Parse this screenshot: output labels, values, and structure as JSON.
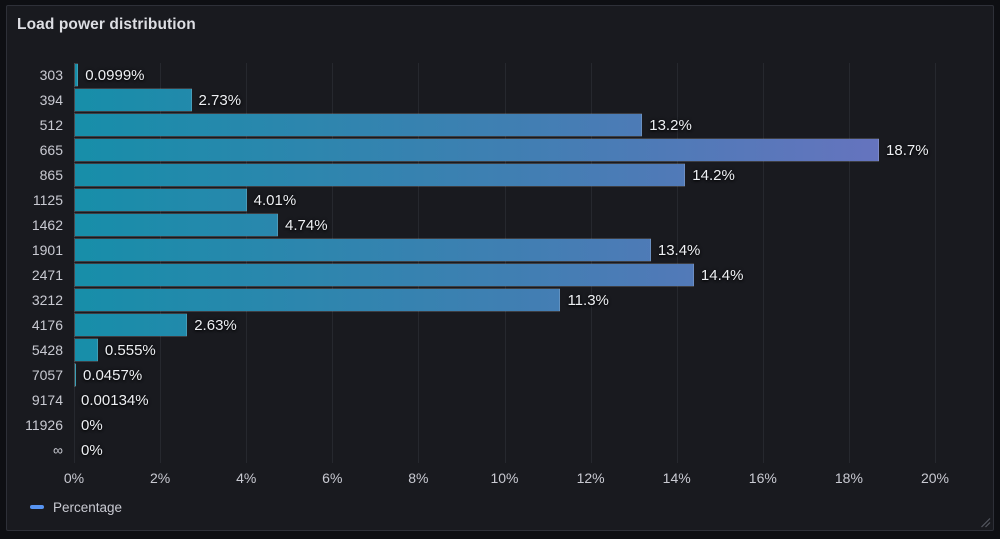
{
  "panel": {
    "title": "Load power distribution"
  },
  "legend": {
    "label": "Percentage",
    "marker_color": "#5794F2"
  },
  "colors": {
    "page_bg": "#0e0f13",
    "panel_bg": "#191a1f",
    "panel_border": "#2e3038",
    "grid_line": "#26282e",
    "axis_text": "#c9cad2",
    "value_text": "#eef0f4",
    "title_text": "#dddee3",
    "legend_marker": "#5794F2",
    "bar_gradient_start": "#178ea9",
    "bar_gradient_mid": "#3f7fb2",
    "bar_gradient_end": "#6b72c0"
  },
  "chart_data": {
    "type": "bar",
    "orientation": "horizontal",
    "title": "Load power distribution",
    "categories": [
      "303",
      "394",
      "512",
      "665",
      "865",
      "1125",
      "1462",
      "1901",
      "2471",
      "3212",
      "4176",
      "5428",
      "7057",
      "9174",
      "11926",
      "∞"
    ],
    "values": [
      0.0999,
      2.73,
      13.2,
      18.7,
      14.2,
      4.01,
      4.74,
      13.4,
      14.4,
      11.3,
      2.63,
      0.555,
      0.0457,
      0.00134,
      0,
      0
    ],
    "value_labels": [
      "0.0999%",
      "2.73%",
      "13.2%",
      "18.7%",
      "14.2%",
      "4.01%",
      "4.74%",
      "13.4%",
      "14.4%",
      "11.3%",
      "2.63%",
      "0.555%",
      "0.0457%",
      "0.00134%",
      "0%",
      "0%"
    ],
    "x_ticks": [
      "0%",
      "2%",
      "4%",
      "6%",
      "8%",
      "10%",
      "12%",
      "14%",
      "16%",
      "18%",
      "20%"
    ],
    "xlim": [
      0,
      20
    ],
    "xlabel": "",
    "ylabel": "",
    "grid": "vertical",
    "legend_entries": [
      "Percentage"
    ],
    "legend_position": "bottom-left",
    "color_scheme": "teal-to-purple continuous gradient mapped to x value"
  }
}
